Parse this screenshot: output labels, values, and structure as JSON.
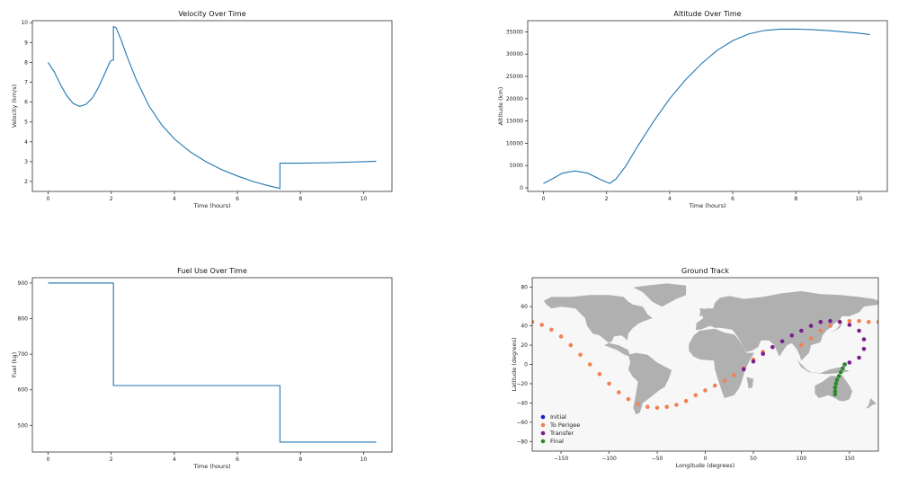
{
  "chart_data": [
    {
      "id": "velocity",
      "type": "line",
      "title": "Velocity Over Time",
      "xlabel": "Time (hours)",
      "ylabel": "Velocity (km/s)",
      "xlim": [
        -0.5,
        10.9
      ],
      "ylim": [
        1.5,
        10.1
      ],
      "xticks": [
        0,
        2,
        4,
        6,
        8,
        10
      ],
      "yticks": [
        2,
        3,
        4,
        5,
        6,
        7,
        8,
        9,
        10
      ],
      "series": [
        {
          "color": "#1f77b4",
          "points": [
            [
              0,
              8.0
            ],
            [
              0.2,
              7.5
            ],
            [
              0.4,
              6.85
            ],
            [
              0.6,
              6.3
            ],
            [
              0.8,
              5.92
            ],
            [
              1.0,
              5.78
            ],
            [
              1.2,
              5.88
            ],
            [
              1.4,
              6.2
            ],
            [
              1.6,
              6.75
            ],
            [
              1.8,
              7.45
            ],
            [
              1.95,
              8.0
            ],
            [
              2.0,
              8.1
            ],
            [
              2.07,
              8.12
            ],
            [
              2.07,
              9.8
            ],
            [
              2.15,
              9.75
            ],
            [
              2.3,
              9.2
            ],
            [
              2.5,
              8.3
            ],
            [
              2.8,
              7.1
            ],
            [
              3.2,
              5.8
            ],
            [
              3.6,
              4.85
            ],
            [
              4.0,
              4.15
            ],
            [
              4.5,
              3.5
            ],
            [
              5.0,
              3.0
            ],
            [
              5.5,
              2.6
            ],
            [
              6.0,
              2.28
            ],
            [
              6.5,
              2.0
            ],
            [
              7.0,
              1.78
            ],
            [
              7.35,
              1.65
            ],
            [
              7.35,
              2.92
            ],
            [
              8.0,
              2.92
            ],
            [
              9.0,
              2.95
            ],
            [
              10.0,
              3.0
            ],
            [
              10.4,
              3.02
            ]
          ]
        }
      ]
    },
    {
      "id": "altitude",
      "type": "line",
      "title": "Altitude Over Time",
      "xlabel": "Time (hours)",
      "ylabel": "Altitude (km)",
      "xlim": [
        -0.5,
        10.9
      ],
      "ylim": [
        -800,
        37500
      ],
      "xticks": [
        0,
        2,
        4,
        6,
        8,
        10
      ],
      "yticks": [
        0,
        5000,
        10000,
        15000,
        20000,
        25000,
        30000,
        35000
      ],
      "series": [
        {
          "color": "#1f77b4",
          "points": [
            [
              0,
              1000
            ],
            [
              0.3,
              2100
            ],
            [
              0.6,
              3300
            ],
            [
              1.0,
              3800
            ],
            [
              1.4,
              3300
            ],
            [
              1.8,
              1900
            ],
            [
              2.1,
              1000
            ],
            [
              2.3,
              2000
            ],
            [
              2.6,
              4800
            ],
            [
              3.0,
              9500
            ],
            [
              3.5,
              15000
            ],
            [
              4.0,
              20000
            ],
            [
              4.5,
              24200
            ],
            [
              5.0,
              27800
            ],
            [
              5.5,
              30800
            ],
            [
              6.0,
              33000
            ],
            [
              6.5,
              34500
            ],
            [
              7.0,
              35300
            ],
            [
              7.5,
              35600
            ],
            [
              8.0,
              35600
            ],
            [
              8.5,
              35500
            ],
            [
              9.0,
              35300
            ],
            [
              9.5,
              35000
            ],
            [
              10.0,
              34700
            ],
            [
              10.35,
              34400
            ]
          ]
        }
      ]
    },
    {
      "id": "fuel",
      "type": "line",
      "title": "Fuel Use Over Time",
      "xlabel": "Time (hours)",
      "ylabel": "Fuel (kg)",
      "xlim": [
        -0.5,
        10.9
      ],
      "ylim": [
        425,
        915
      ],
      "xticks": [
        0,
        2,
        4,
        6,
        8,
        10
      ],
      "yticks": [
        500,
        600,
        700,
        800,
        900
      ],
      "series": [
        {
          "color": "#1f77b4",
          "points": [
            [
              0,
              900
            ],
            [
              2.07,
              900
            ],
            [
              2.07,
              612
            ],
            [
              7.35,
              612
            ],
            [
              7.35,
              453
            ],
            [
              10.4,
              453
            ]
          ]
        }
      ]
    },
    {
      "id": "ground_track",
      "type": "scatter",
      "title": "Ground Track",
      "xlabel": "Longitude (degrees)",
      "ylabel": "Latitude (degrees)",
      "xlim": [
        -180,
        180
      ],
      "ylim": [
        -90,
        90
      ],
      "xticks": [
        -150,
        -100,
        -50,
        0,
        50,
        100,
        150
      ],
      "yticks": [
        -80,
        -60,
        -40,
        -20,
        0,
        20,
        40,
        60,
        80
      ],
      "legend_position": "lower-left",
      "series": [
        {
          "name": "Initial",
          "color": "#1f1fc8",
          "points": []
        },
        {
          "name": "To Perigee",
          "color": "#ef8354",
          "points": [
            [
              -180,
              44
            ],
            [
              -170,
              41
            ],
            [
              -160,
              36
            ],
            [
              -150,
              29
            ],
            [
              -140,
              20
            ],
            [
              -130,
              10
            ],
            [
              -120,
              0
            ],
            [
              -110,
              -10
            ],
            [
              -100,
              -20
            ],
            [
              -90,
              -29
            ],
            [
              -80,
              -36
            ],
            [
              -70,
              -41
            ],
            [
              -60,
              -44
            ],
            [
              -50,
              -45
            ],
            [
              -40,
              -44
            ],
            [
              -30,
              -42
            ],
            [
              -20,
              -38
            ],
            [
              -10,
              -32
            ],
            [
              0,
              -27
            ],
            [
              10,
              -22
            ],
            [
              20,
              -17
            ],
            [
              30,
              -11
            ],
            [
              40,
              -4
            ],
            [
              50,
              5
            ],
            [
              60,
              13
            ],
            [
              70,
              18
            ],
            [
              100,
              20
            ],
            [
              110,
              27
            ],
            [
              120,
              35
            ],
            [
              130,
              40
            ],
            [
              140,
              44
            ],
            [
              150,
              45
            ],
            [
              160,
              45
            ],
            [
              170,
              44
            ],
            [
              180,
              44
            ]
          ]
        },
        {
          "name": "Transfer",
          "color": "#7a1f8f",
          "points": [
            [
              40,
              -5
            ],
            [
              50,
              3
            ],
            [
              60,
              11
            ],
            [
              70,
              18
            ],
            [
              80,
              24
            ],
            [
              90,
              30
            ],
            [
              100,
              35
            ],
            [
              110,
              40
            ],
            [
              120,
              44
            ],
            [
              130,
              45
            ],
            [
              140,
              44
            ],
            [
              150,
              41
            ],
            [
              160,
              35
            ],
            [
              165,
              26
            ],
            [
              165,
              16
            ],
            [
              160,
              7
            ],
            [
              150,
              2
            ],
            [
              145,
              0
            ]
          ]
        },
        {
          "name": "Final",
          "color": "#2a8a2a",
          "points": [
            [
              145,
              0
            ],
            [
              143,
              -4
            ],
            [
              141,
              -8
            ],
            [
              139,
              -12
            ],
            [
              137,
              -16
            ],
            [
              136,
              -20
            ],
            [
              135,
              -24
            ],
            [
              135,
              -28
            ],
            [
              135,
              -31
            ]
          ]
        }
      ]
    }
  ]
}
